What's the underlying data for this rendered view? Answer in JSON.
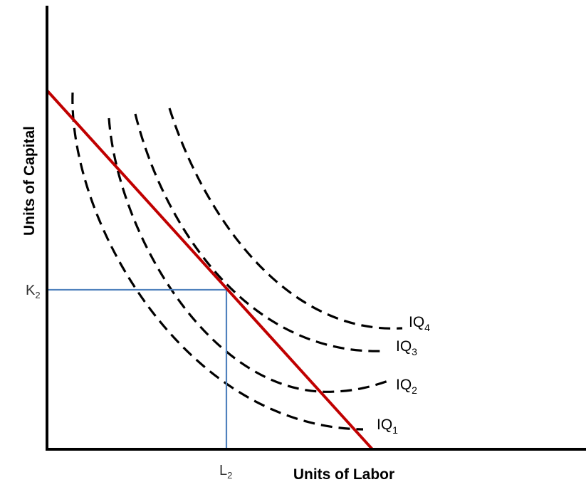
{
  "axes": {
    "y_title": "Units of Capital",
    "x_title": "Units of Labor"
  },
  "ticks": {
    "k_main": "K",
    "k_sub": "2",
    "l_main": "L",
    "l_sub": "2"
  },
  "isoquants": [
    {
      "main": "IQ",
      "sub": "1"
    },
    {
      "main": "IQ",
      "sub": "2"
    },
    {
      "main": "IQ",
      "sub": "3"
    },
    {
      "main": "IQ",
      "sub": "4"
    }
  ],
  "colors": {
    "axis": "#000000",
    "isocost": "#c00000",
    "isoquant": "#000000",
    "guide": "#4f81bd"
  }
}
